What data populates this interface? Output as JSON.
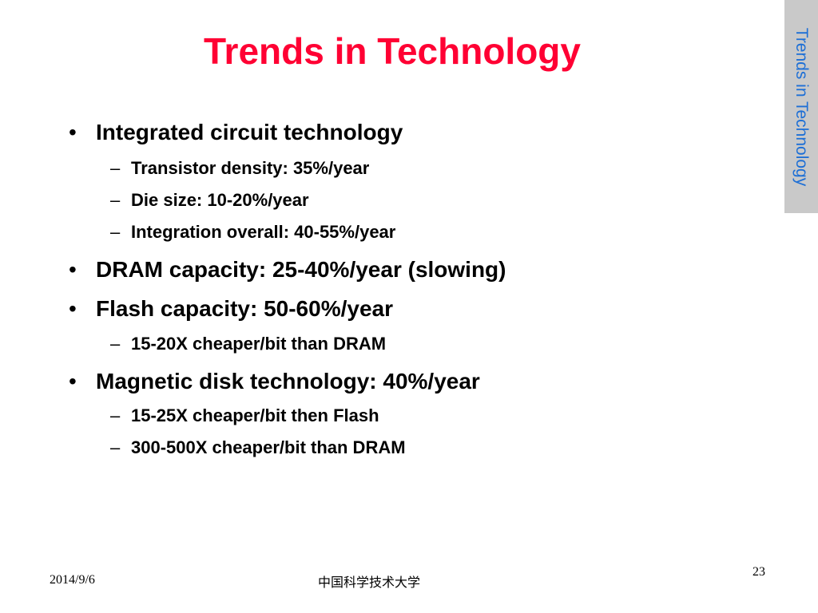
{
  "slide": {
    "title": "Trends in Technology",
    "side_tab": "Trends in Technology",
    "bullets": [
      {
        "text": "Integrated circuit technology",
        "sub": [
          "Transistor density:  35%/year",
          "Die size:  10-20%/year",
          "Integration overall:  40-55%/year"
        ]
      },
      {
        "text": "DRAM capacity:  25-40%/year (slowing)",
        "sub": []
      },
      {
        "text": "Flash capacity:  50-60%/year",
        "sub": [
          "15-20X cheaper/bit than DRAM"
        ]
      },
      {
        "text": "Magnetic disk technology:  40%/year",
        "sub": [
          "15-25X cheaper/bit then Flash",
          "300-500X cheaper/bit than DRAM"
        ]
      }
    ],
    "footer": {
      "date": "2014/9/6",
      "organization": "中国科学技术大学",
      "page_number": "23"
    },
    "colors": {
      "title": "#ff0033",
      "side_tab_background": "#c9c9c9",
      "side_tab_text": "#1d6fd6",
      "body_text": "#000000"
    }
  }
}
